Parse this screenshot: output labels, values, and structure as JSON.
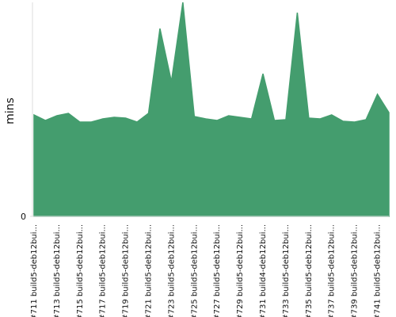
{
  "chart_data": {
    "type": "area",
    "y_label": "mins",
    "color": "#449d6e",
    "categories": [
      "#711 build5-deb12bui...",
      null,
      "#713 build5-deb12bui...",
      null,
      "#715 build5-deb12bui...",
      null,
      "#717 build5-deb12bui...",
      null,
      "#719 build5-deb12bui...",
      null,
      "#721 build5-deb12bui...",
      null,
      "#723 build5-deb12bui...",
      null,
      "#725 build5-deb12bui...",
      null,
      "#727 build5-deb12bui...",
      null,
      "#729 build5-deb12bui...",
      null,
      "#731 build4-deb12bui...",
      null,
      "#733 build5-deb12bui...",
      null,
      "#735 build5-deb12bui...",
      null,
      "#737 build5-deb12bui...",
      null,
      "#739 build5-deb12bui...",
      null,
      "#741 build5-deb12bui...",
      null
    ],
    "values": [
      128,
      121,
      127,
      130,
      119,
      119,
      123,
      125,
      124,
      119,
      130,
      237,
      170,
      270,
      126,
      123,
      121,
      127,
      125,
      123,
      180,
      121,
      122,
      257,
      124,
      123,
      128,
      120,
      119,
      122,
      154,
      131
    ],
    "ylim": [
      0,
      270
    ],
    "yticks": [
      0
    ]
  }
}
